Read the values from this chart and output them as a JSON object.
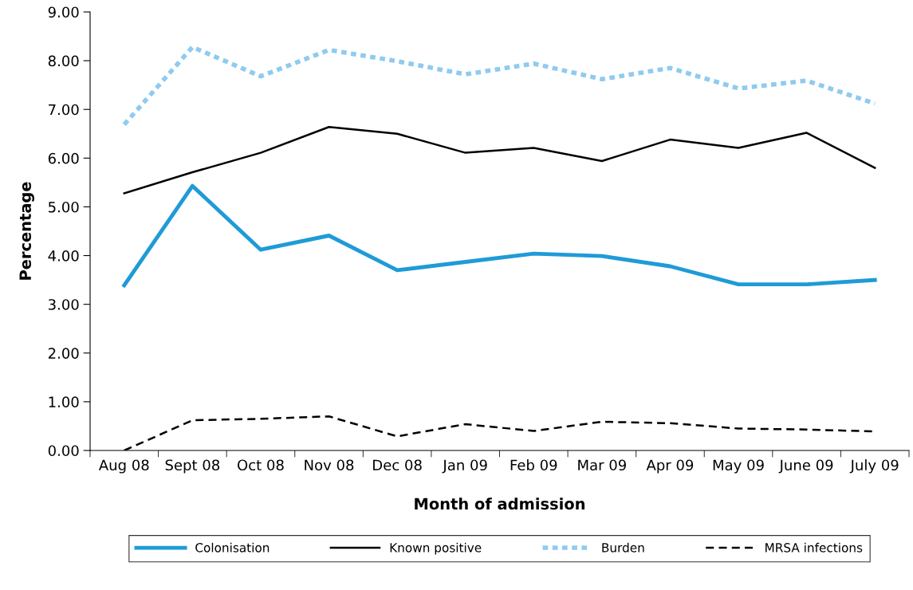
{
  "chart_data": {
    "type": "line",
    "xlabel": "Month of admission",
    "ylabel": "Percentage",
    "categories": [
      "Aug 08",
      "Sept 08",
      "Oct 08",
      "Nov 08",
      "Dec 08",
      "Jan 09",
      "Feb 09",
      "Mar 09",
      "Apr 09",
      "May 09",
      "June 09",
      "July 09"
    ],
    "series": [
      {
        "name": "Colonisation",
        "color": "#1f9bd7",
        "line_style": "solid",
        "values": [
          3.39,
          5.43,
          4.12,
          4.41,
          3.7,
          3.87,
          4.04,
          3.99,
          3.78,
          3.41,
          3.41,
          3.5
        ]
      },
      {
        "name": "Known positive",
        "color": "#000000",
        "line_style": "solid",
        "values": [
          5.28,
          5.71,
          6.11,
          6.64,
          6.5,
          6.11,
          6.21,
          5.94,
          6.38,
          6.21,
          6.52,
          5.8
        ]
      },
      {
        "name": "Burden",
        "color": "#8fcbef",
        "line_style": "dotted",
        "values": [
          6.69,
          8.28,
          7.68,
          8.22,
          7.99,
          7.72,
          7.94,
          7.62,
          7.85,
          7.43,
          7.59,
          7.12
        ]
      },
      {
        "name": "MRSA infections",
        "color": "#000000",
        "line_style": "dashed",
        "values": [
          0.0,
          0.62,
          0.65,
          0.7,
          0.29,
          0.54,
          0.4,
          0.59,
          0.56,
          0.45,
          0.43,
          0.39
        ]
      }
    ],
    "ylim": [
      0,
      9
    ],
    "yticks": [
      {
        "value": 0,
        "label": "0.00"
      },
      {
        "value": 1,
        "label": "1.00"
      },
      {
        "value": 2,
        "label": "2.00"
      },
      {
        "value": 3,
        "label": "3.00"
      },
      {
        "value": 4,
        "label": "4.00"
      },
      {
        "value": 5,
        "label": "5.00"
      },
      {
        "value": 6,
        "label": "6.00"
      },
      {
        "value": 7,
        "label": "7.00"
      },
      {
        "value": 8,
        "label": "8.00"
      },
      {
        "value": 9,
        "label": "9.00"
      }
    ],
    "legend": "bottom",
    "grid": false,
    "marker": "none"
  }
}
